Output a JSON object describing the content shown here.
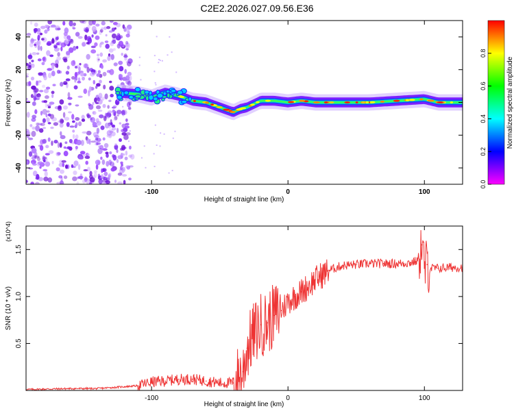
{
  "chart_data": [
    {
      "type": "heatmap",
      "title": "C2E2.2026.027.09.56.E36",
      "xlabel": "Height of straight line (km)",
      "ylabel": "Frequency (Hz)",
      "xlim": [
        -192,
        128
      ],
      "ylim": [
        -50,
        50
      ],
      "xticks": [
        -100,
        0,
        100
      ],
      "yticks": [
        -40,
        -20,
        0,
        20,
        40
      ],
      "colorbar": {
        "label": "Normalized spectral amplitude",
        "range": [
          0,
          1
        ],
        "ticks": [
          "0.0",
          "0.2",
          "0.4",
          "0.6",
          "0.8"
        ],
        "colormap": [
          "#ff00ff",
          "#0000ff",
          "#00ffff",
          "#00ff00",
          "#ffff00",
          "#ff0000"
        ]
      },
      "noise_region_x": [
        -192,
        -122
      ],
      "trace": {
        "x": [
          -125,
          -110,
          -100,
          -90,
          -80,
          -70,
          -60,
          -50,
          -40,
          -35,
          -30,
          -20,
          -10,
          0,
          10,
          20,
          40,
          60,
          80,
          100,
          110,
          128
        ],
        "y": [
          6,
          5,
          3,
          6,
          4,
          1,
          0,
          -3,
          -6,
          -4,
          -3,
          1,
          1,
          0,
          1,
          0,
          0,
          0,
          1,
          2,
          0,
          0
        ]
      }
    },
    {
      "type": "line",
      "xlabel": "Height of straight line (km)",
      "ylabel": "SNR (10 * v/v)",
      "multiplier": "(x10^4)",
      "xlim": [
        -192,
        128
      ],
      "ylim": [
        0,
        1.75
      ],
      "xticks": [
        -100,
        0,
        100
      ],
      "yticks": [
        "0.5",
        "1.0",
        "1.5"
      ],
      "series": [
        {
          "name": "SNR",
          "color": "#ee3333",
          "x": [
            -192,
            -160,
            -140,
            -130,
            -120,
            -110,
            -100,
            -90,
            -80,
            -70,
            -60,
            -50,
            -40,
            -33,
            -30,
            -25,
            -20,
            -15,
            -10,
            -5,
            0,
            5,
            10,
            20,
            30,
            40,
            50,
            60,
            70,
            80,
            90,
            95,
            98,
            100,
            102,
            105,
            110,
            120,
            128
          ],
          "y": [
            0.01,
            0.02,
            0.02,
            0.03,
            0.04,
            0.05,
            0.09,
            0.1,
            0.12,
            0.12,
            0.1,
            0.08,
            0.08,
            0.2,
            0.45,
            0.6,
            0.7,
            0.72,
            0.8,
            0.85,
            0.95,
            1.0,
            1.05,
            1.18,
            1.28,
            1.33,
            1.34,
            1.35,
            1.35,
            1.35,
            1.36,
            1.38,
            1.55,
            1.3,
            1.34,
            1.3,
            1.3,
            1.31,
            1.31
          ]
        }
      ]
    }
  ]
}
